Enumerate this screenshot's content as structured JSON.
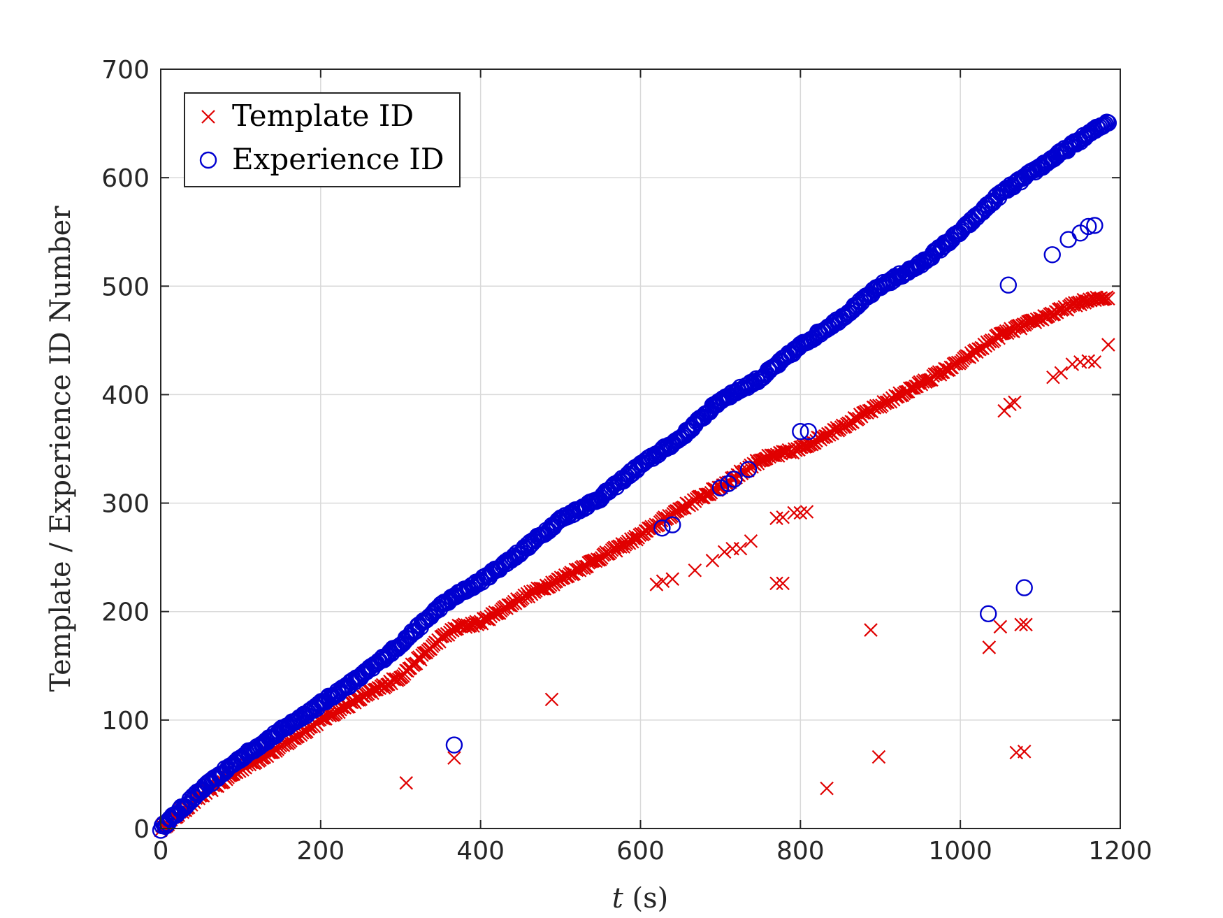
{
  "chart_data": {
    "type": "scatter",
    "xlabel_var": "t",
    "xlabel_unit": " (s)",
    "ylabel": "Template / Experience ID Number",
    "xlim": [
      0,
      1200
    ],
    "ylim": [
      0,
      700
    ],
    "xticks": [
      0,
      200,
      400,
      600,
      800,
      1000,
      1200
    ],
    "yticks": [
      0,
      100,
      200,
      300,
      400,
      500,
      600,
      700
    ],
    "grid": true,
    "legend_position": "top-left",
    "series": [
      {
        "name": "Template ID",
        "marker": "x",
        "color": "#e00000",
        "trend": [
          [
            0,
            0
          ],
          [
            50,
            30
          ],
          [
            100,
            55
          ],
          [
            150,
            75
          ],
          [
            200,
            100
          ],
          [
            250,
            120
          ],
          [
            300,
            140
          ],
          [
            350,
            175
          ],
          [
            370,
            185
          ],
          [
            400,
            190
          ],
          [
            450,
            212
          ],
          [
            500,
            230
          ],
          [
            550,
            250
          ],
          [
            600,
            270
          ],
          [
            650,
            295
          ],
          [
            700,
            315
          ],
          [
            750,
            340
          ],
          [
            800,
            350
          ],
          [
            850,
            370
          ],
          [
            900,
            390
          ],
          [
            950,
            410
          ],
          [
            1000,
            430
          ],
          [
            1050,
            455
          ],
          [
            1100,
            470
          ],
          [
            1150,
            485
          ],
          [
            1185,
            490
          ]
        ],
        "outliers": [
          [
            307,
            42
          ],
          [
            367,
            65
          ],
          [
            489,
            119
          ],
          [
            620,
            225
          ],
          [
            628,
            228
          ],
          [
            640,
            230
          ],
          [
            668,
            238
          ],
          [
            690,
            247
          ],
          [
            705,
            255
          ],
          [
            715,
            258
          ],
          [
            725,
            258
          ],
          [
            738,
            265
          ],
          [
            770,
            226
          ],
          [
            778,
            226
          ],
          [
            770,
            286
          ],
          [
            778,
            287
          ],
          [
            792,
            291
          ],
          [
            800,
            291
          ],
          [
            808,
            292
          ],
          [
            833,
            37
          ],
          [
            888,
            183
          ],
          [
            898,
            66
          ],
          [
            1036,
            167
          ],
          [
            1050,
            186
          ],
          [
            1055,
            385
          ],
          [
            1062,
            391
          ],
          [
            1068,
            393
          ],
          [
            1070,
            70
          ],
          [
            1076,
            188
          ],
          [
            1080,
            71
          ],
          [
            1082,
            188
          ],
          [
            1116,
            416
          ],
          [
            1126,
            420
          ],
          [
            1140,
            428
          ],
          [
            1150,
            430
          ],
          [
            1160,
            431
          ],
          [
            1168,
            430
          ],
          [
            1185,
            446
          ]
        ]
      },
      {
        "name": "Experience ID",
        "marker": "o",
        "color": "#0000d0",
        "trend": [
          [
            0,
            0
          ],
          [
            50,
            35
          ],
          [
            100,
            65
          ],
          [
            150,
            90
          ],
          [
            200,
            115
          ],
          [
            250,
            140
          ],
          [
            300,
            170
          ],
          [
            350,
            205
          ],
          [
            370,
            215
          ],
          [
            400,
            228
          ],
          [
            450,
            255
          ],
          [
            500,
            285
          ],
          [
            550,
            305
          ],
          [
            600,
            335
          ],
          [
            650,
            360
          ],
          [
            700,
            395
          ],
          [
            750,
            415
          ],
          [
            800,
            445
          ],
          [
            850,
            470
          ],
          [
            900,
            500
          ],
          [
            950,
            520
          ],
          [
            1000,
            550
          ],
          [
            1050,
            585
          ],
          [
            1100,
            610
          ],
          [
            1150,
            635
          ],
          [
            1185,
            652
          ]
        ],
        "outliers": [
          [
            367,
            77
          ],
          [
            627,
            277
          ],
          [
            640,
            280
          ],
          [
            700,
            314
          ],
          [
            710,
            318
          ],
          [
            717,
            322
          ],
          [
            735,
            331
          ],
          [
            800,
            366
          ],
          [
            810,
            366
          ],
          [
            1035,
            198
          ],
          [
            1060,
            501
          ],
          [
            1080,
            222
          ],
          [
            1115,
            529
          ],
          [
            1135,
            543
          ],
          [
            1150,
            549
          ],
          [
            1160,
            555
          ],
          [
            1168,
            556
          ]
        ]
      }
    ]
  }
}
